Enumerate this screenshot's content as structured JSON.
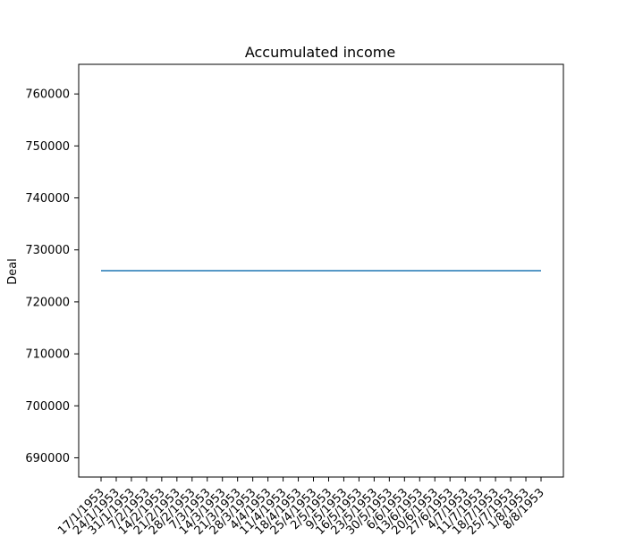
{
  "chart_data": {
    "type": "line",
    "title": "Accumulated income",
    "xlabel": "",
    "ylabel": "Deal",
    "x": [
      "17/1/1953",
      "24/1/1953",
      "31/1/1953",
      "7/2/1953",
      "14/2/1953",
      "21/2/1953",
      "28/2/1953",
      "7/3/1953",
      "14/3/1953",
      "21/3/1953",
      "28/3/1953",
      "4/4/1953",
      "11/4/1953",
      "18/4/1953",
      "25/4/1953",
      "2/5/1953",
      "9/5/1953",
      "16/5/1953",
      "23/5/1953",
      "30/5/1953",
      "6/6/1953",
      "13/6/1953",
      "20/6/1953",
      "27/6/1953",
      "4/7/1953",
      "11/7/1953",
      "18/7/1953",
      "25/7/1953",
      "1/8/1953",
      "8/8/1953"
    ],
    "series": [
      {
        "color": "#1f77b4",
        "values": [
          726000,
          726000,
          726000,
          726000,
          726000,
          726000,
          726000,
          726000,
          726000,
          726000,
          726000,
          726000,
          726000,
          726000,
          726000,
          726000,
          726000,
          726000,
          726000,
          726000,
          726000,
          726000,
          726000,
          726000,
          726000,
          726000,
          726000,
          726000,
          726000,
          726000
        ]
      }
    ],
    "yticks": [
      690000,
      700000,
      710000,
      720000,
      730000,
      740000,
      750000,
      760000
    ],
    "ytick_labels": [
      "690000",
      "700000",
      "710000",
      "720000",
      "730000",
      "740000",
      "750000",
      "760000"
    ],
    "ylim": [
      686300,
      765700
    ],
    "grid": false
  }
}
